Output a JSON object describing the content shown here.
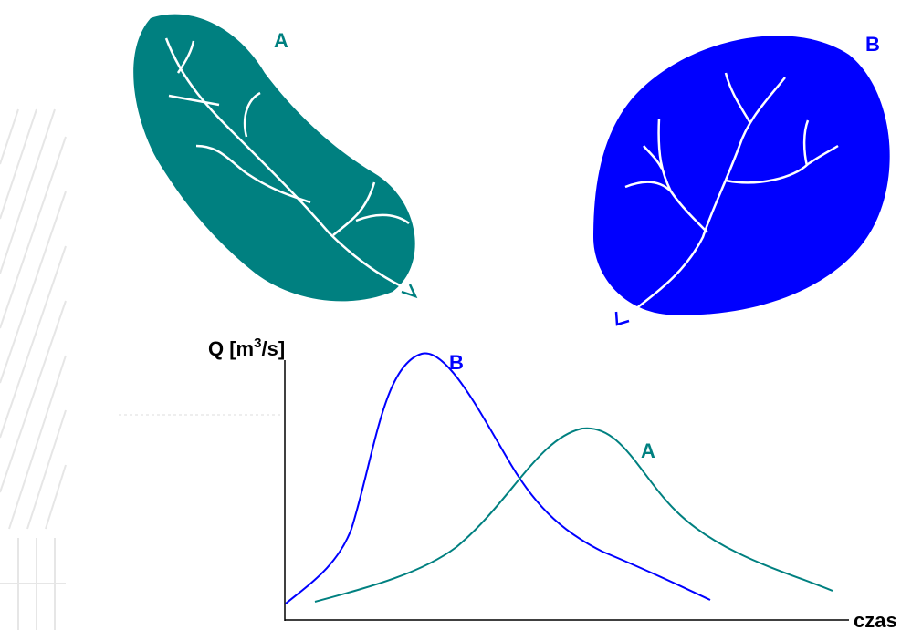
{
  "catchments": [
    {
      "label": "A"
    },
    {
      "label": "B"
    }
  ],
  "axes": {
    "y_label": {
      "base": "Q [m",
      "sup": "3",
      "end": "/s]"
    },
    "x_label": "czas"
  },
  "curves": [
    {
      "label": "B"
    },
    {
      "label": "A"
    }
  ]
}
